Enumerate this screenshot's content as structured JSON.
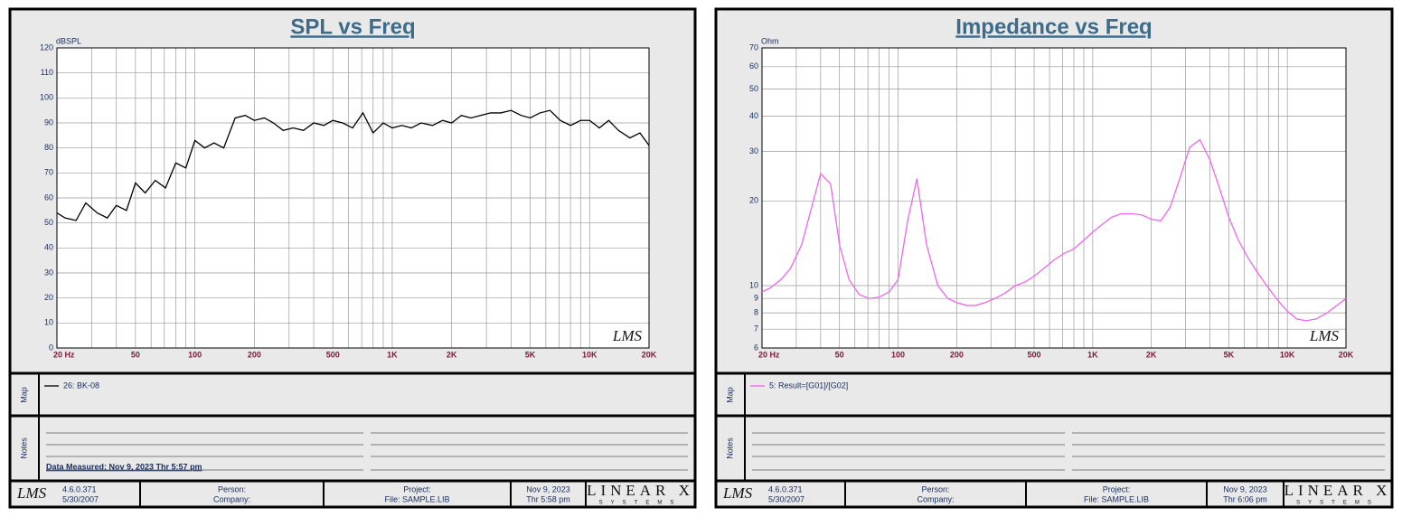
{
  "chart_data": [
    {
      "type": "line",
      "title": "SPL vs Freq",
      "y_label": "dBSPL",
      "xscale": "log",
      "yscale": "linear",
      "grid": true,
      "xlim": [
        20,
        20000
      ],
      "ylim": [
        0,
        120
      ],
      "xticks": [
        {
          "value": 20,
          "label": "20  Hz"
        },
        50,
        100,
        200,
        500,
        {
          "value": 1000,
          "label": "1K"
        },
        {
          "value": 2000,
          "label": "2K"
        },
        {
          "value": 5000,
          "label": "5K"
        },
        {
          "value": 10000,
          "label": "10K"
        },
        {
          "value": 20000,
          "label": "20K"
        }
      ],
      "xgrid_minor": [
        30,
        40,
        60,
        70,
        80,
        90,
        300,
        400,
        600,
        700,
        800,
        900,
        3000,
        4000,
        6000,
        7000,
        8000,
        9000
      ],
      "yticks": [
        0,
        10,
        20,
        30,
        40,
        50,
        60,
        70,
        80,
        90,
        100,
        110,
        120
      ],
      "x": [
        20,
        22,
        25,
        28,
        32,
        36,
        40,
        45,
        50,
        56,
        63,
        71,
        80,
        90,
        100,
        112,
        125,
        140,
        160,
        180,
        200,
        225,
        250,
        280,
        315,
        355,
        400,
        450,
        500,
        560,
        630,
        710,
        800,
        900,
        1000,
        1120,
        1250,
        1400,
        1600,
        1800,
        2000,
        2240,
        2500,
        2800,
        3150,
        3550,
        4000,
        4500,
        5000,
        5600,
        6300,
        7100,
        8000,
        9000,
        10000,
        11200,
        12500,
        14000,
        16000,
        18000,
        20000
      ],
      "series": [
        {
          "name": "26: BK-08",
          "color": "#000000",
          "values": [
            54,
            52,
            51,
            58,
            54,
            52,
            57,
            55,
            66,
            62,
            67,
            64,
            74,
            72,
            83,
            80,
            82,
            80,
            92,
            93,
            91,
            92,
            90,
            87,
            88,
            87,
            90,
            89,
            91,
            90,
            88,
            94,
            86,
            90,
            88,
            89,
            88,
            90,
            89,
            91,
            90,
            93,
            92,
            93,
            94,
            94,
            95,
            93,
            92,
            94,
            95,
            91,
            89,
            91,
            91,
            88,
            91,
            87,
            84,
            86,
            81
          ]
        }
      ]
    },
    {
      "type": "line",
      "title": "Impedance vs Freq",
      "y_label": "Ohm",
      "xscale": "log",
      "yscale": "log",
      "grid": true,
      "xlim": [
        20,
        20000
      ],
      "ylim": [
        6,
        70
      ],
      "xticks": [
        {
          "value": 20,
          "label": "20  Hz"
        },
        50,
        100,
        200,
        500,
        {
          "value": 1000,
          "label": "1K"
        },
        {
          "value": 2000,
          "label": "2K"
        },
        {
          "value": 5000,
          "label": "5K"
        },
        {
          "value": 10000,
          "label": "10K"
        },
        {
          "value": 20000,
          "label": "20K"
        }
      ],
      "xgrid_minor": [
        30,
        40,
        60,
        70,
        80,
        90,
        300,
        400,
        600,
        700,
        800,
        900,
        3000,
        4000,
        6000,
        7000,
        8000,
        9000
      ],
      "yticks": [
        6,
        7,
        8,
        9,
        10,
        20,
        30,
        40,
        50,
        60,
        70
      ],
      "x": [
        20,
        22,
        25,
        28,
        32,
        36,
        40,
        45,
        50,
        56,
        63,
        71,
        80,
        90,
        100,
        112,
        125,
        140,
        160,
        180,
        200,
        225,
        250,
        280,
        315,
        355,
        400,
        450,
        500,
        560,
        630,
        710,
        800,
        900,
        1000,
        1120,
        1250,
        1400,
        1600,
        1800,
        2000,
        2240,
        2500,
        2800,
        3150,
        3550,
        4000,
        4500,
        5000,
        5600,
        6300,
        7100,
        8000,
        9000,
        10000,
        11200,
        12500,
        14000,
        16000,
        18000,
        20000
      ],
      "series": [
        {
          "name": "5: Result=[G01]/[G02]",
          "color": "#ee66ee",
          "values": [
            9.5,
            9.8,
            10.5,
            11.5,
            14,
            19,
            25,
            23,
            14,
            10.5,
            9.3,
            9,
            9.1,
            9.5,
            10.5,
            17,
            24,
            14,
            10,
            9,
            8.7,
            8.5,
            8.5,
            8.7,
            9,
            9.4,
            10,
            10.3,
            10.8,
            11.5,
            12.3,
            13,
            13.5,
            14.5,
            15.5,
            16.5,
            17.5,
            18,
            18,
            17.8,
            17.2,
            17,
            19,
            24,
            31,
            33,
            28,
            22,
            17.5,
            14.5,
            12.5,
            11,
            9.8,
            8.8,
            8.1,
            7.6,
            7.5,
            7.6,
            8,
            8.5,
            9
          ]
        }
      ]
    }
  ],
  "panels": [
    {
      "logo": "LMS",
      "map_label": "Map",
      "notes_label": "Notes",
      "notes": [
        "Data Measured: Nov  9, 2023  Thr  5:57 pm"
      ],
      "footer": {
        "version": "4.6.0.371",
        "build_date": "5/30/2007",
        "person": "Person:",
        "company": "Company:",
        "project": "Project:",
        "file": "File: SAMPLE.LIB",
        "date": "Nov  9, 2023",
        "time": "Thr  5:58 pm",
        "brand": "LINEAR X",
        "brand_sub": "SYSTEMS"
      }
    },
    {
      "logo": "LMS",
      "map_label": "Map",
      "notes_label": "Notes",
      "notes": [],
      "footer": {
        "version": "4.6.0.371",
        "build_date": "5/30/2007",
        "person": "Person:",
        "company": "Company:",
        "project": "Project:",
        "file": "File: SAMPLE.LIB",
        "date": "Nov  9, 2023",
        "time": "Thr  6:06 pm",
        "brand": "LINEAR X",
        "brand_sub": "SYSTEMS"
      }
    }
  ]
}
